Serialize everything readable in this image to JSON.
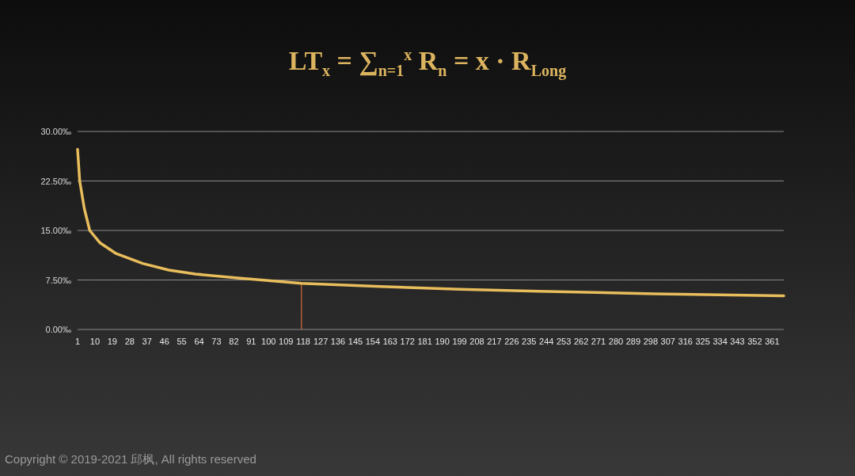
{
  "chart_data": {
    "type": "line",
    "title": "LT$_{x}$ = ∑$_{n=1}$$^{x}$ R$_{n}$ = x · R$_{Long}$",
    "x": [
      1,
      2.1,
      4.5,
      7.3,
      12.7,
      21,
      34.7,
      48.3,
      62,
      84,
      117,
      158,
      199,
      240,
      300,
      367
    ],
    "series": [
      {
        "color": "#e8bd5c",
        "values": [
          27.3,
          22.5,
          18.3,
          15,
          13.1,
          11.5,
          10.0,
          9.0,
          8.4,
          7.8,
          7.0,
          6.5,
          6.1,
          5.8,
          5.4,
          5.1
        ]
      }
    ],
    "xlim": [
      1,
      367
    ],
    "xticks": [
      1,
      10,
      19,
      28,
      37,
      46,
      55,
      64,
      73,
      82,
      91,
      100,
      109,
      118,
      127,
      136,
      145,
      154,
      163,
      172,
      181,
      190,
      199,
      208,
      217,
      226,
      235,
      244,
      253,
      262,
      271,
      280,
      289,
      298,
      307,
      316,
      325,
      334,
      343,
      352,
      361
    ],
    "ylim": [
      0,
      30
    ],
    "yticks": [
      {
        "value": 0,
        "label": "0.00‰"
      },
      {
        "value": 7.5,
        "label": "7.50‰"
      },
      {
        "value": 15,
        "label": "15.00‰"
      },
      {
        "value": 22.5,
        "label": "22.50‰"
      },
      {
        "value": 30,
        "label": "30.00‰"
      }
    ],
    "grid": "y",
    "ref_lines": [
      {
        "axis": "x",
        "value": 117,
        "color": "#b0603a"
      }
    ],
    "annotations": [
      "Copyright © 2019-2021 邱枫, All rights reserved"
    ]
  }
}
